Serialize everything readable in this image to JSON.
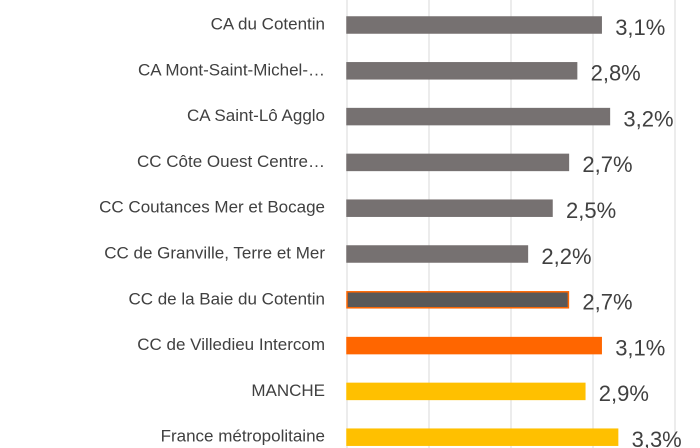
{
  "chart_data": {
    "type": "barh",
    "categories": [
      "CA du Cotentin",
      "CA Mont-Saint-Michel-…",
      "CA Saint-Lô Agglo",
      "CC Côte Ouest Centre…",
      "CC Coutances Mer et Bocage",
      "CC de Granville, Terre et Mer",
      "CC de la Baie du Cotentin",
      "CC de Villedieu Intercom",
      "MANCHE",
      "France métropolitaine"
    ],
    "values": [
      3.1,
      2.8,
      3.2,
      2.7,
      2.5,
      2.2,
      2.7,
      3.1,
      2.9,
      3.3
    ],
    "value_labels": [
      "3,1%",
      "2,8%",
      "3,2%",
      "2,7%",
      "2,5%",
      "2,2%",
      "2,7%",
      "3,1%",
      "2,9%",
      "3,3%"
    ],
    "colors": [
      "#767171",
      "#767171",
      "#767171",
      "#767171",
      "#767171",
      "#767171",
      "#595959",
      "#ff6600",
      "#ffc000",
      "#ffc000"
    ],
    "edgecolors": [
      "#767171",
      "#767171",
      "#767171",
      "#767171",
      "#767171",
      "#767171",
      "#ff6600",
      "#ff6600",
      "#ffc000",
      "#ffc000"
    ],
    "xlim": [
      0,
      4.3
    ],
    "xticks": [
      0,
      1,
      2,
      3,
      4
    ],
    "grid": true
  }
}
